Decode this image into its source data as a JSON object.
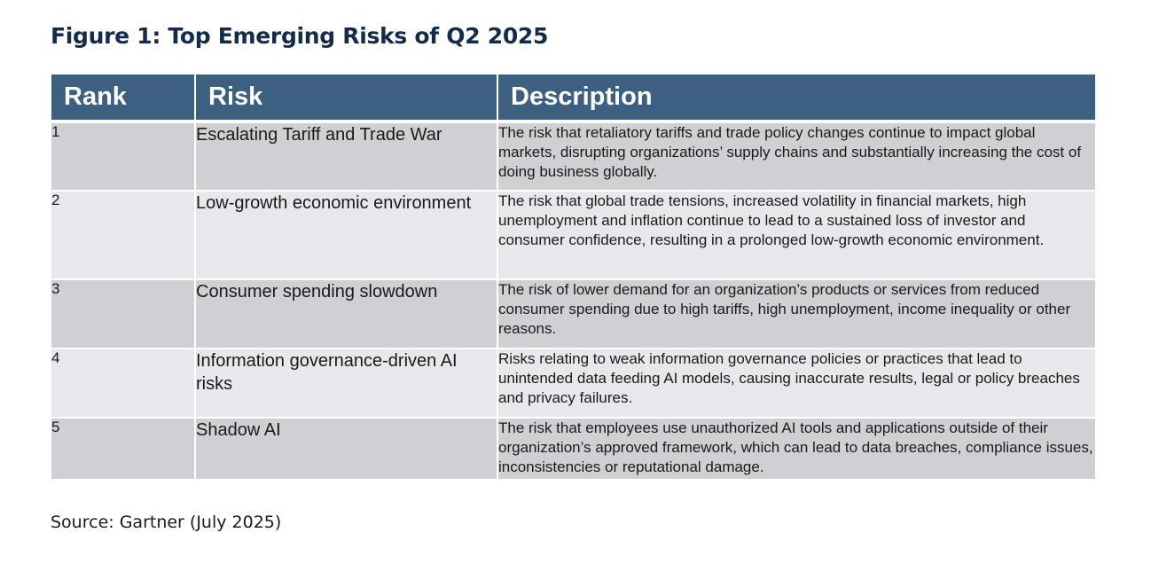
{
  "figure": {
    "title": "Figure 1: Top Emerging Risks of Q2 2025",
    "source": "Source: Gartner (July 2025)"
  },
  "table": {
    "headers": {
      "rank": "Rank",
      "risk": "Risk",
      "description": "Description"
    },
    "rows": [
      {
        "rank": "1",
        "risk": "Escalating Tariff and Trade War",
        "description": "The risk that retaliatory tariffs and trade policy changes continue to impact global markets, disrupting organizations’ supply chains and substantially increasing the cost of doing business globally."
      },
      {
        "rank": "2",
        "risk": "Low-growth economic environment",
        "description": "The risk that global trade tensions, increased volatility in financial markets, high unemployment and inflation continue to lead to a sustained loss of investor and consumer confidence, resulting in a prolonged low-growth economic environment."
      },
      {
        "rank": "3",
        "risk": "Consumer spending slowdown",
        "description": "The risk of lower demand for an organization’s products or services from reduced consumer spending due to high tariffs, high unemployment, income inequality or other reasons."
      },
      {
        "rank": "4",
        "risk": "Information governance-driven AI risks",
        "description": "Risks relating to weak information governance policies or practices that lead to unintended data feeding AI models, causing inaccurate results, legal or policy breaches and privacy failures."
      },
      {
        "rank": "5",
        "risk": "Shadow AI",
        "description": "The risk that employees use unauthorized AI tools and applications outside of their organization’s approved framework, which can lead to data breaches, compliance issues, inconsistencies or reputational damage."
      }
    ]
  },
  "colors": {
    "title": "#142b4b",
    "header_bg": "#3d5f80",
    "row_odd": "#d0d0d4",
    "row_even": "#e8e8ec"
  }
}
